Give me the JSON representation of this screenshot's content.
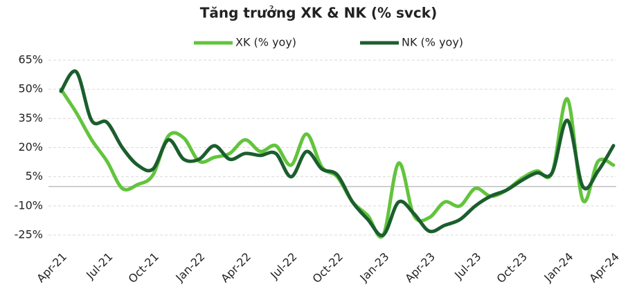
{
  "chart_data": {
    "type": "line",
    "title": "Tăng trưởng XK & NK (% svck)",
    "categories": [
      "Apr-21",
      null,
      null,
      "Jul-21",
      null,
      null,
      "Oct-21",
      null,
      null,
      "Jan-22",
      null,
      null,
      "Apr-22",
      null,
      null,
      "Jul-22",
      null,
      null,
      "Oct-22",
      null,
      null,
      "Jan-23",
      null,
      null,
      "Apr-23",
      null,
      null,
      "Jul-23",
      null,
      null,
      "Oct-23",
      null,
      null,
      "Jan-24",
      null,
      null,
      "Apr-24"
    ],
    "series": [
      {
        "name": "XK (% yoy)",
        "color": "#62c43c",
        "values": [
          50,
          38,
          24,
          13,
          -1,
          1,
          6,
          26,
          25,
          13,
          15,
          17,
          24,
          18,
          21,
          11,
          27,
          10,
          5,
          -8,
          -15,
          -25,
          12,
          -15,
          -16,
          -8,
          -10,
          -1,
          -5,
          -2,
          4,
          8,
          7,
          45,
          -7,
          13,
          11
        ]
      },
      {
        "name": "NK (% yoy)",
        "color": "#1b5e2d",
        "values": [
          49,
          59,
          34,
          33,
          20,
          11,
          9,
          24,
          14,
          14,
          21,
          14,
          17,
          16,
          17,
          5,
          18,
          9,
          6,
          -8,
          -17,
          -25,
          -8,
          -14,
          -23,
          -20,
          -17,
          -10,
          -5,
          -2,
          3,
          7,
          7,
          34,
          0,
          8,
          21
        ]
      }
    ],
    "ylim": [
      -25,
      65
    ],
    "yticks": [
      {
        "value": -25,
        "label": "-25%"
      },
      {
        "value": -10,
        "label": "-10%"
      },
      {
        "value": 5,
        "label": "5%"
      },
      {
        "value": 20,
        "label": "20%"
      },
      {
        "value": 35,
        "label": "35%"
      },
      {
        "value": 50,
        "label": "50%"
      },
      {
        "value": 65,
        "label": "65%"
      }
    ],
    "grid": true
  }
}
